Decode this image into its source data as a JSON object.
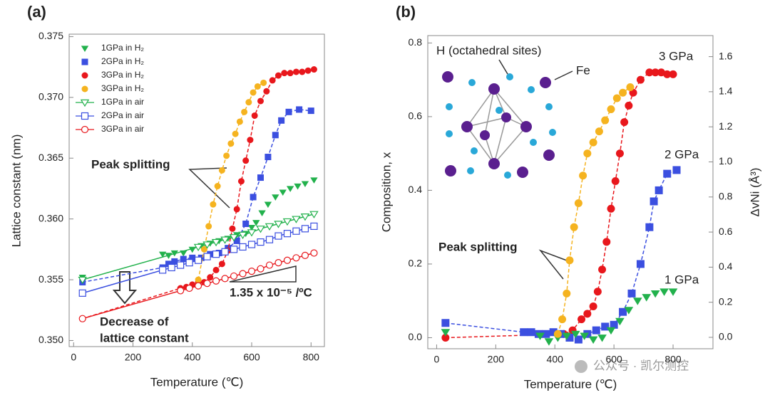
{
  "chart_data": [
    {
      "type": "scatter",
      "panel_label": "(a)",
      "x_label": "Temperature (℃)",
      "y_label": "Lattice constant (nm)",
      "xlim": [
        -15,
        845
      ],
      "ylim": [
        0.3495,
        0.3752
      ],
      "xticks": [
        0,
        200,
        400,
        600,
        800
      ],
      "yticks": [
        {
          "value": 0.35,
          "label": "0.350"
        },
        0.355,
        {
          "value": 0.36,
          "label": "0.360"
        },
        0.365,
        {
          "value": 0.37,
          "label": "0.370"
        },
        0.375
      ],
      "legend": "upper left",
      "annotations": [
        "Peak splitting",
        "1.35 x 10⁻⁵ /ºC",
        "Decrease of",
        "lattice constant"
      ],
      "series": [
        {
          "name": "1GPa in H₂",
          "color": "#22b14c",
          "marker": "triangle-down",
          "filled": true,
          "line": "none",
          "x": [
            30,
            300,
            320,
            340,
            370,
            400,
            430,
            460,
            490,
            520,
            550,
            580,
            600,
            615,
            635,
            655,
            680,
            705,
            730,
            755,
            780,
            810
          ],
          "values": [
            0.3552,
            0.3571,
            0.357,
            0.3572,
            0.3572,
            0.3575,
            0.3578,
            0.358,
            0.3582,
            0.3584,
            0.3587,
            0.3588,
            0.3593,
            0.3597,
            0.3605,
            0.3612,
            0.3618,
            0.3622,
            0.3625,
            0.3627,
            0.3629,
            0.3632
          ]
        },
        {
          "name": "2GPa in H₂",
          "color": "#3b4fe0",
          "marker": "square",
          "filled": true,
          "line": "dashed",
          "x": [
            30,
            300,
            320,
            340,
            370,
            400,
            430,
            460,
            490,
            520,
            550,
            580,
            605,
            630,
            655,
            680,
            700,
            725,
            760,
            800
          ],
          "values": [
            0.3548,
            0.356,
            0.3563,
            0.3565,
            0.3567,
            0.3568,
            0.3568,
            0.3571,
            0.3572,
            0.3576,
            0.3582,
            0.3596,
            0.3618,
            0.3634,
            0.3651,
            0.3669,
            0.3681,
            0.3688,
            0.369,
            0.3689
          ]
        },
        {
          "name": "3GPa in H₂",
          "color": "#e8171c",
          "marker": "circle",
          "filled": true,
          "line": "dashed",
          "x": [
            30,
            360,
            380,
            400,
            420,
            440,
            460,
            480,
            500,
            520,
            535,
            550,
            565,
            580,
            595,
            610,
            630,
            650,
            670,
            690,
            710,
            730,
            750,
            770,
            790,
            810
          ],
          "values": [
            0.3518,
            0.3543,
            0.3544,
            0.3546,
            0.3548,
            0.3548,
            0.3552,
            0.3558,
            0.3563,
            0.3574,
            0.3592,
            0.3608,
            0.3631,
            0.3648,
            0.3665,
            0.3685,
            0.3697,
            0.3705,
            0.3714,
            0.3718,
            0.372,
            0.372,
            0.3721,
            0.3721,
            0.3722,
            0.3723
          ]
        },
        {
          "name": "3GPa in H₂",
          "color": "#f5b31f",
          "marker": "circle",
          "filled": true,
          "line": "dashed",
          "x": [
            420,
            440,
            455,
            470,
            485,
            500,
            515,
            530,
            545,
            560,
            575,
            590,
            605,
            620,
            640
          ],
          "values": [
            0.355,
            0.3575,
            0.3594,
            0.3612,
            0.3627,
            0.364,
            0.3652,
            0.3662,
            0.367,
            0.368,
            0.3688,
            0.3696,
            0.3704,
            0.3709,
            0.3712
          ]
        },
        {
          "name": "1GPa in air",
          "color": "#22b14c",
          "marker": "triangle-down",
          "filled": false,
          "line": "solid",
          "x": [
            30,
            420,
            450,
            480,
            510,
            540,
            570,
            600,
            630,
            660,
            690,
            720,
            750,
            780,
            810
          ],
          "values": [
            0.355,
            0.3577,
            0.3579,
            0.3581,
            0.3583,
            0.3585,
            0.3587,
            0.3589,
            0.3592,
            0.3594,
            0.3596,
            0.3598,
            0.36,
            0.3602,
            0.3604
          ]
        },
        {
          "name": "2GPa in air",
          "color": "#3b4fe0",
          "marker": "square",
          "filled": false,
          "line": "solid",
          "x": [
            30,
            300,
            330,
            360,
            390,
            420,
            450,
            480,
            510,
            540,
            570,
            600,
            630,
            660,
            690,
            720,
            750,
            780,
            810
          ],
          "values": [
            0.3539,
            0.3558,
            0.356,
            0.3562,
            0.3564,
            0.3566,
            0.3569,
            0.3571,
            0.3573,
            0.3575,
            0.3577,
            0.3579,
            0.3581,
            0.3583,
            0.3586,
            0.3588,
            0.359,
            0.3592,
            0.3594
          ]
        },
        {
          "name": "3GPa in air",
          "color": "#e8171c",
          "marker": "circle",
          "filled": false,
          "line": "solid",
          "x": [
            30,
            360,
            390,
            420,
            450,
            480,
            510,
            540,
            570,
            600,
            630,
            660,
            690,
            720,
            750,
            780,
            810
          ],
          "values": [
            0.3518,
            0.3541,
            0.3543,
            0.3545,
            0.3547,
            0.3549,
            0.3551,
            0.3553,
            0.3555,
            0.3557,
            0.3559,
            0.3562,
            0.3564,
            0.3566,
            0.3568,
            0.357,
            0.3572
          ]
        }
      ]
    },
    {
      "type": "scatter",
      "panel_label": "(b)",
      "x_label": "Temperature (℃)",
      "y_label": "Composition, x",
      "y2_label": "ΔvNi (Å³)",
      "xlim": [
        -30,
        935
      ],
      "ylim": [
        -0.03,
        0.82
      ],
      "y2lim": [
        -0.065,
        1.72
      ],
      "xticks": [
        0,
        200,
        400,
        600,
        800
      ],
      "yticks": [
        {
          "value": 0,
          "label": "0.0"
        },
        0.2,
        0.4,
        0.6,
        0.8
      ],
      "y2ticks": [
        {
          "value": 0,
          "label": "0.0"
        },
        0.2,
        0.4,
        0.6,
        0.8,
        {
          "value": 1,
          "label": "1.0"
        },
        1.2,
        1.4,
        1.6
      ],
      "legend": false,
      "annotations": [
        "H (octahedral sites)",
        "Fe",
        "Peak splitting"
      ],
      "watermark": "公众号 · 凯尔测控",
      "series": [
        {
          "name": "3 GPa",
          "color": "#e8171c",
          "marker": "circle",
          "filled": true,
          "line": "dashed",
          "x": [
            30,
            430,
            460,
            490,
            510,
            530,
            545,
            560,
            575,
            590,
            605,
            620,
            635,
            650,
            665,
            690,
            720,
            740,
            760,
            780,
            800
          ],
          "values": [
            0.0,
            0.01,
            0.02,
            0.05,
            0.065,
            0.085,
            0.125,
            0.185,
            0.26,
            0.35,
            0.425,
            0.5,
            0.585,
            0.63,
            0.665,
            0.7,
            0.72,
            0.72,
            0.72,
            0.715,
            0.715
          ]
        },
        {
          "name": "2 GPa",
          "color": "#3b4fe0",
          "marker": "square",
          "filled": true,
          "line": "dashed",
          "x": [
            30,
            295,
            320,
            345,
            370,
            395,
            420,
            450,
            480,
            510,
            540,
            570,
            600,
            630,
            660,
            690,
            720,
            735,
            752,
            780,
            812
          ],
          "values": [
            0.04,
            0.015,
            0.015,
            0.01,
            0.01,
            0.015,
            0.01,
            0.0,
            -0.005,
            0.01,
            0.02,
            0.03,
            0.035,
            0.07,
            0.12,
            0.2,
            0.3,
            0.37,
            0.4,
            0.445,
            0.455
          ]
        },
        {
          "name": "1 GPa",
          "color": "#22b14c",
          "marker": "triangle-down",
          "filled": true,
          "line": "none",
          "x": [
            30,
            350,
            380,
            410,
            440,
            470,
            500,
            530,
            560,
            590,
            620,
            650,
            680,
            710,
            740,
            770,
            800
          ],
          "values": [
            0.015,
            0.005,
            -0.01,
            0.0,
            0.005,
            0.01,
            0.005,
            -0.005,
            0.0,
            0.02,
            0.045,
            0.075,
            0.1,
            0.11,
            0.12,
            0.125,
            0.125
          ]
        },
        {
          "color": "#f5b31f",
          "marker": "circle",
          "filled": true,
          "line": "dashed",
          "x": [
            410,
            425,
            440,
            450,
            465,
            480,
            495,
            510,
            530,
            550,
            570,
            590,
            610,
            630,
            655
          ],
          "values": [
            0.01,
            0.05,
            0.12,
            0.21,
            0.3,
            0.365,
            0.44,
            0.5,
            0.53,
            0.56,
            0.59,
            0.62,
            0.65,
            0.665,
            0.68
          ]
        }
      ]
    }
  ]
}
